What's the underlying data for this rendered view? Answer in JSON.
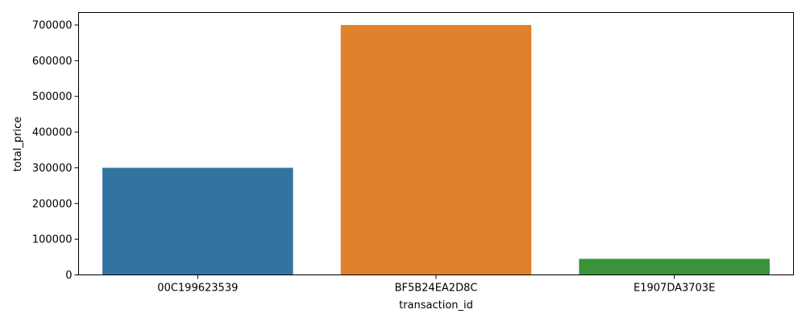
{
  "chart_data": {
    "type": "bar",
    "title": "",
    "xlabel": "transaction_id",
    "ylabel": "total_price",
    "categories": [
      "00C199623539",
      "BF5B24EA2D8C",
      "E1907DA3703E"
    ],
    "values": [
      300000,
      700000,
      45000
    ],
    "colors": [
      "#3274a1",
      "#e1812c",
      "#3a923a"
    ],
    "ylim": [
      0,
      735000
    ],
    "yticks": [
      0,
      100000,
      200000,
      300000,
      400000,
      500000,
      600000,
      700000
    ],
    "ytick_labels": [
      "0",
      "100000",
      "200000",
      "300000",
      "400000",
      "500000",
      "600000",
      "700000"
    ],
    "grid": false,
    "legend": "none"
  }
}
